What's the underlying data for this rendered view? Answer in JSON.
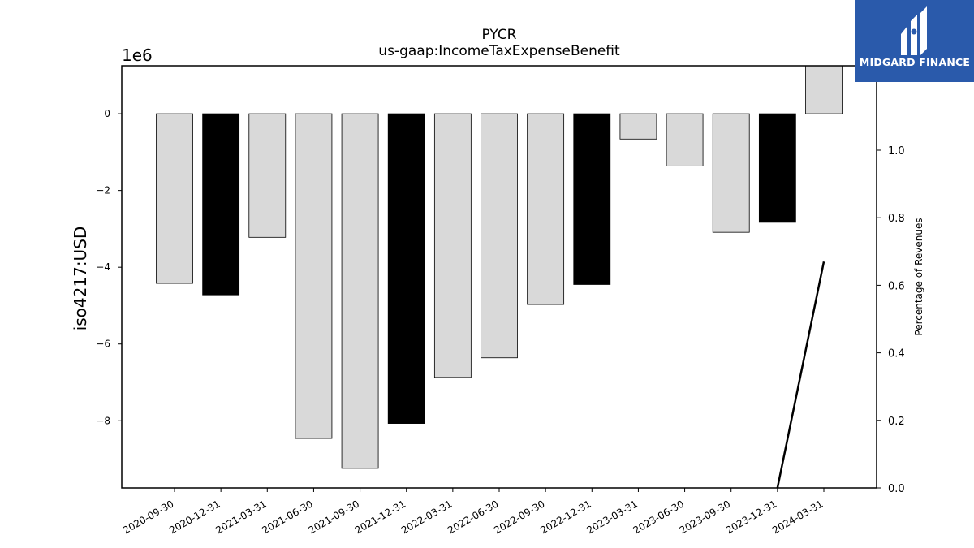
{
  "chart_data": {
    "type": "bar",
    "title": "PYCR",
    "subtitle": "us-gaap:IncomeTaxExpenseBenefit",
    "ylabel": "iso4217:USD",
    "y_offset_label": "1e6",
    "y2label": "Percentage of Revenues",
    "ylim": [
      -9.75,
      1.25
    ],
    "y2lim": [
      0.0,
      1.25
    ],
    "yticks": [
      0,
      -2,
      -4,
      -6,
      -8
    ],
    "ytick_labels": [
      "0",
      "−2",
      "−4",
      "−6",
      "−8"
    ],
    "y2ticks": [
      0.0,
      0.2,
      0.4,
      0.6,
      0.8,
      1.0
    ],
    "y2tick_labels": [
      "0.0",
      "0.2",
      "0.4",
      "0.6",
      "0.8",
      "1.0"
    ],
    "categories": [
      "2020-09-30",
      "2020-12-31",
      "2021-03-31",
      "2021-06-30",
      "2021-09-30",
      "2021-12-31",
      "2022-03-31",
      "2022-06-30",
      "2022-09-30",
      "2022-12-31",
      "2023-03-31",
      "2023-06-30",
      "2023-09-30",
      "2023-12-31",
      "2024-03-31"
    ],
    "values": [
      -4.42,
      -4.72,
      -3.22,
      -8.46,
      -9.24,
      -8.07,
      -6.87,
      -6.36,
      -4.97,
      -4.45,
      -0.66,
      -1.36,
      -3.09,
      -2.83,
      1.25
    ],
    "bar_colors": [
      "#d9d9d9",
      "#000000",
      "#d9d9d9",
      "#d9d9d9",
      "#d9d9d9",
      "#000000",
      "#d9d9d9",
      "#d9d9d9",
      "#d9d9d9",
      "#000000",
      "#d9d9d9",
      "#d9d9d9",
      "#d9d9d9",
      "#000000",
      "#d9d9d9"
    ],
    "line_series": {
      "axis": "secondary",
      "x": [
        "2023-12-31",
        "2024-03-31"
      ],
      "values": [
        0.0,
        0.67
      ],
      "color": "#000000"
    },
    "grid": false,
    "legend": "none"
  },
  "logo": {
    "text": "MIDGARD FINANCE",
    "color": "#2a5aab"
  }
}
